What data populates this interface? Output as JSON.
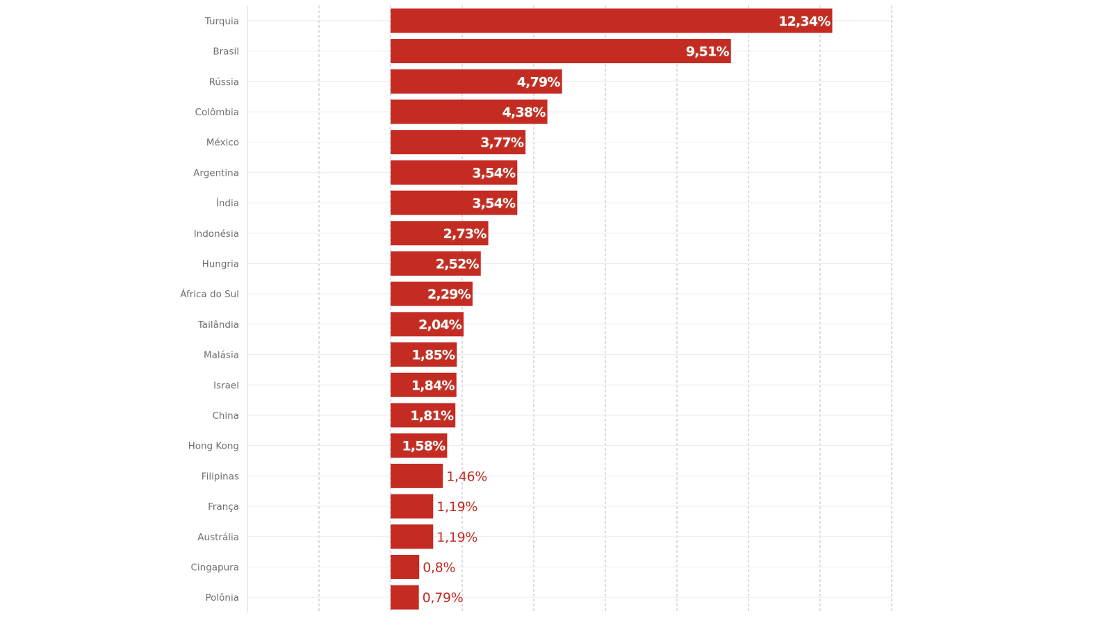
{
  "chart_data": {
    "type": "bar",
    "orientation": "horizontal",
    "categories": [
      "Turquia",
      "Brasil",
      "Rússia",
      "Colômbia",
      "México",
      "Argentina",
      "Índia",
      "Indonésia",
      "Hungria",
      "África do Sul",
      "Tailândia",
      "Malásia",
      "Israel",
      "China",
      "Hong Kong",
      "Filipinas",
      "França",
      "Austrália",
      "Cingapura",
      "Polônia"
    ],
    "values": [
      12.34,
      9.51,
      4.79,
      4.38,
      3.77,
      3.54,
      3.54,
      2.73,
      2.52,
      2.29,
      2.04,
      1.85,
      1.84,
      1.81,
      1.58,
      1.46,
      1.19,
      1.19,
      0.8,
      0.79
    ],
    "value_labels": [
      "12,34%",
      "9,51%",
      "4,79%",
      "4,38%",
      "3,77%",
      "3,54%",
      "3,54%",
      "2,73%",
      "2,52%",
      "2,29%",
      "2,04%",
      "1,85%",
      "1,84%",
      "1,81%",
      "1,58%",
      "1,46%",
      "1,19%",
      "1,19%",
      "0,8%",
      "0,79%"
    ],
    "title": "",
    "xlabel": "",
    "ylabel": "",
    "xlim": [
      -4,
      14
    ],
    "grid": true,
    "legend": "none",
    "bar_color": "#c42b23"
  }
}
